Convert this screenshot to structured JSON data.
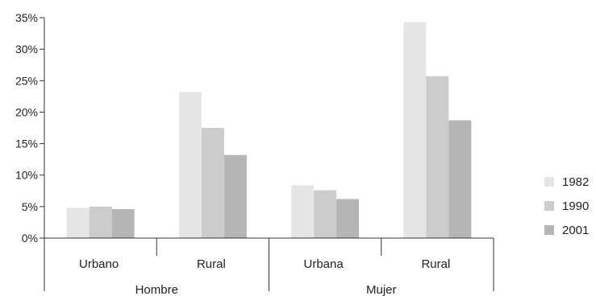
{
  "chart_data": {
    "type": "bar",
    "title": "",
    "xlabel": "",
    "ylabel": "",
    "ylim": [
      0,
      35
    ],
    "yticks": [
      "0%",
      "5%",
      "10%",
      "15%",
      "20%",
      "25%",
      "30%",
      "35%"
    ],
    "grid": false,
    "legend_position": "right",
    "groups": [
      {
        "label": "Hombre",
        "categories": [
          "Urbano",
          "Rural"
        ]
      },
      {
        "label": "Mujer",
        "categories": [
          "Urbana",
          "Rural"
        ]
      }
    ],
    "categories": [
      "Urbano",
      "Rural",
      "Urbana",
      "Rural"
    ],
    "series": [
      {
        "name": "1982",
        "color": "#e6e6e6",
        "values": [
          4.8,
          23.2,
          8.4,
          34.3
        ]
      },
      {
        "name": "1990",
        "color": "#cccccc",
        "values": [
          5.0,
          17.5,
          7.6,
          25.7
        ]
      },
      {
        "name": "2001",
        "color": "#b5b5b5",
        "values": [
          4.6,
          13.2,
          6.2,
          18.7
        ]
      }
    ]
  }
}
